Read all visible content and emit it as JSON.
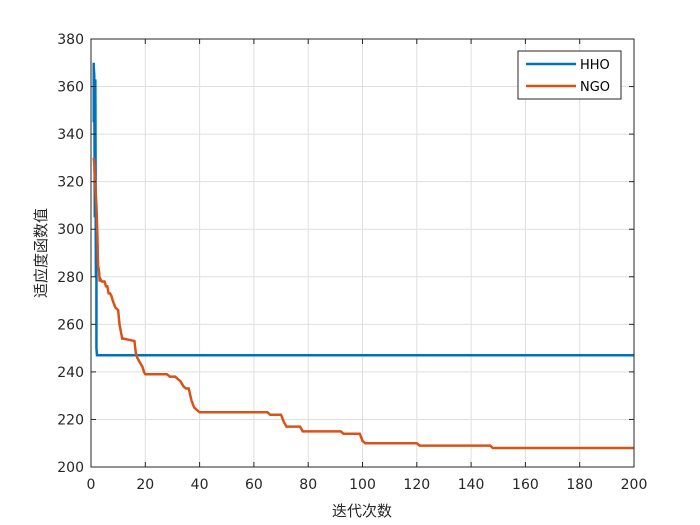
{
  "chart_data": {
    "type": "line",
    "title": "",
    "xlabel": "迭代次数",
    "ylabel": "适应度函数值",
    "xlim": [
      0,
      200
    ],
    "ylim": [
      200,
      380
    ],
    "x_ticks": [
      0,
      20,
      40,
      60,
      80,
      100,
      120,
      140,
      160,
      180,
      200
    ],
    "y_ticks": [
      200,
      220,
      240,
      260,
      280,
      300,
      320,
      340,
      360,
      380
    ],
    "grid": true,
    "legend_position": "top-right",
    "series": [
      {
        "name": "HHO",
        "color": "#0072BD",
        "x": [
          1,
          1,
          1,
          1.2,
          1.4,
          1.6,
          1.8,
          2,
          2,
          2.2,
          2.4,
          2.6,
          2.8,
          3,
          200
        ],
        "y": [
          370,
          345,
          368,
          365,
          305,
          363,
          280,
          300,
          250,
          247,
          247,
          247,
          247,
          247,
          247
        ]
      },
      {
        "name": "NGO",
        "color": "#D95319",
        "x": [
          1,
          1.2,
          1.5,
          2,
          2.3,
          2.6,
          3,
          3.2,
          3.5,
          4,
          5,
          5.5,
          6,
          6.5,
          7,
          7.5,
          8,
          9,
          10,
          10.5,
          11,
          11.5,
          12,
          16,
          16.5,
          17,
          18,
          19,
          19.5,
          20,
          28,
          29,
          31,
          32,
          33,
          34,
          35,
          36,
          37,
          38,
          39,
          40,
          65,
          66,
          70,
          71,
          72,
          77,
          78,
          92,
          93,
          99,
          100,
          101,
          120,
          121,
          147,
          148,
          200
        ],
        "y": [
          330,
          328,
          320,
          310,
          300,
          285,
          282,
          278,
          279,
          278,
          278,
          276,
          276,
          273,
          273,
          272,
          270,
          267,
          266,
          260,
          257,
          254,
          254,
          253,
          248,
          246,
          244,
          242,
          240,
          239,
          239,
          238,
          238,
          237,
          236,
          234,
          233,
          233,
          228,
          225,
          224,
          223,
          223,
          222,
          222,
          219,
          217,
          217,
          215,
          215,
          214,
          214,
          211,
          210,
          210,
          209,
          209,
          208,
          208
        ]
      }
    ]
  }
}
